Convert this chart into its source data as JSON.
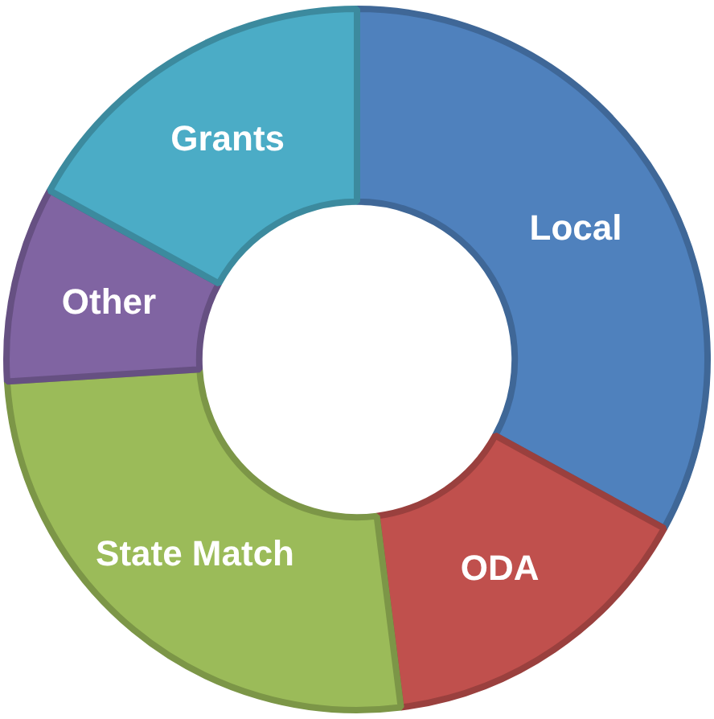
{
  "chart_data": {
    "type": "donut",
    "categories": [
      "Local",
      "ODA",
      "State Match",
      "Other",
      "Grants"
    ],
    "values": [
      33,
      15,
      26,
      9,
      17
    ],
    "colors": [
      "#4f81bd",
      "#c0504d",
      "#9bbb59",
      "#8064a2",
      "#4bacc6"
    ],
    "legend": false
  }
}
